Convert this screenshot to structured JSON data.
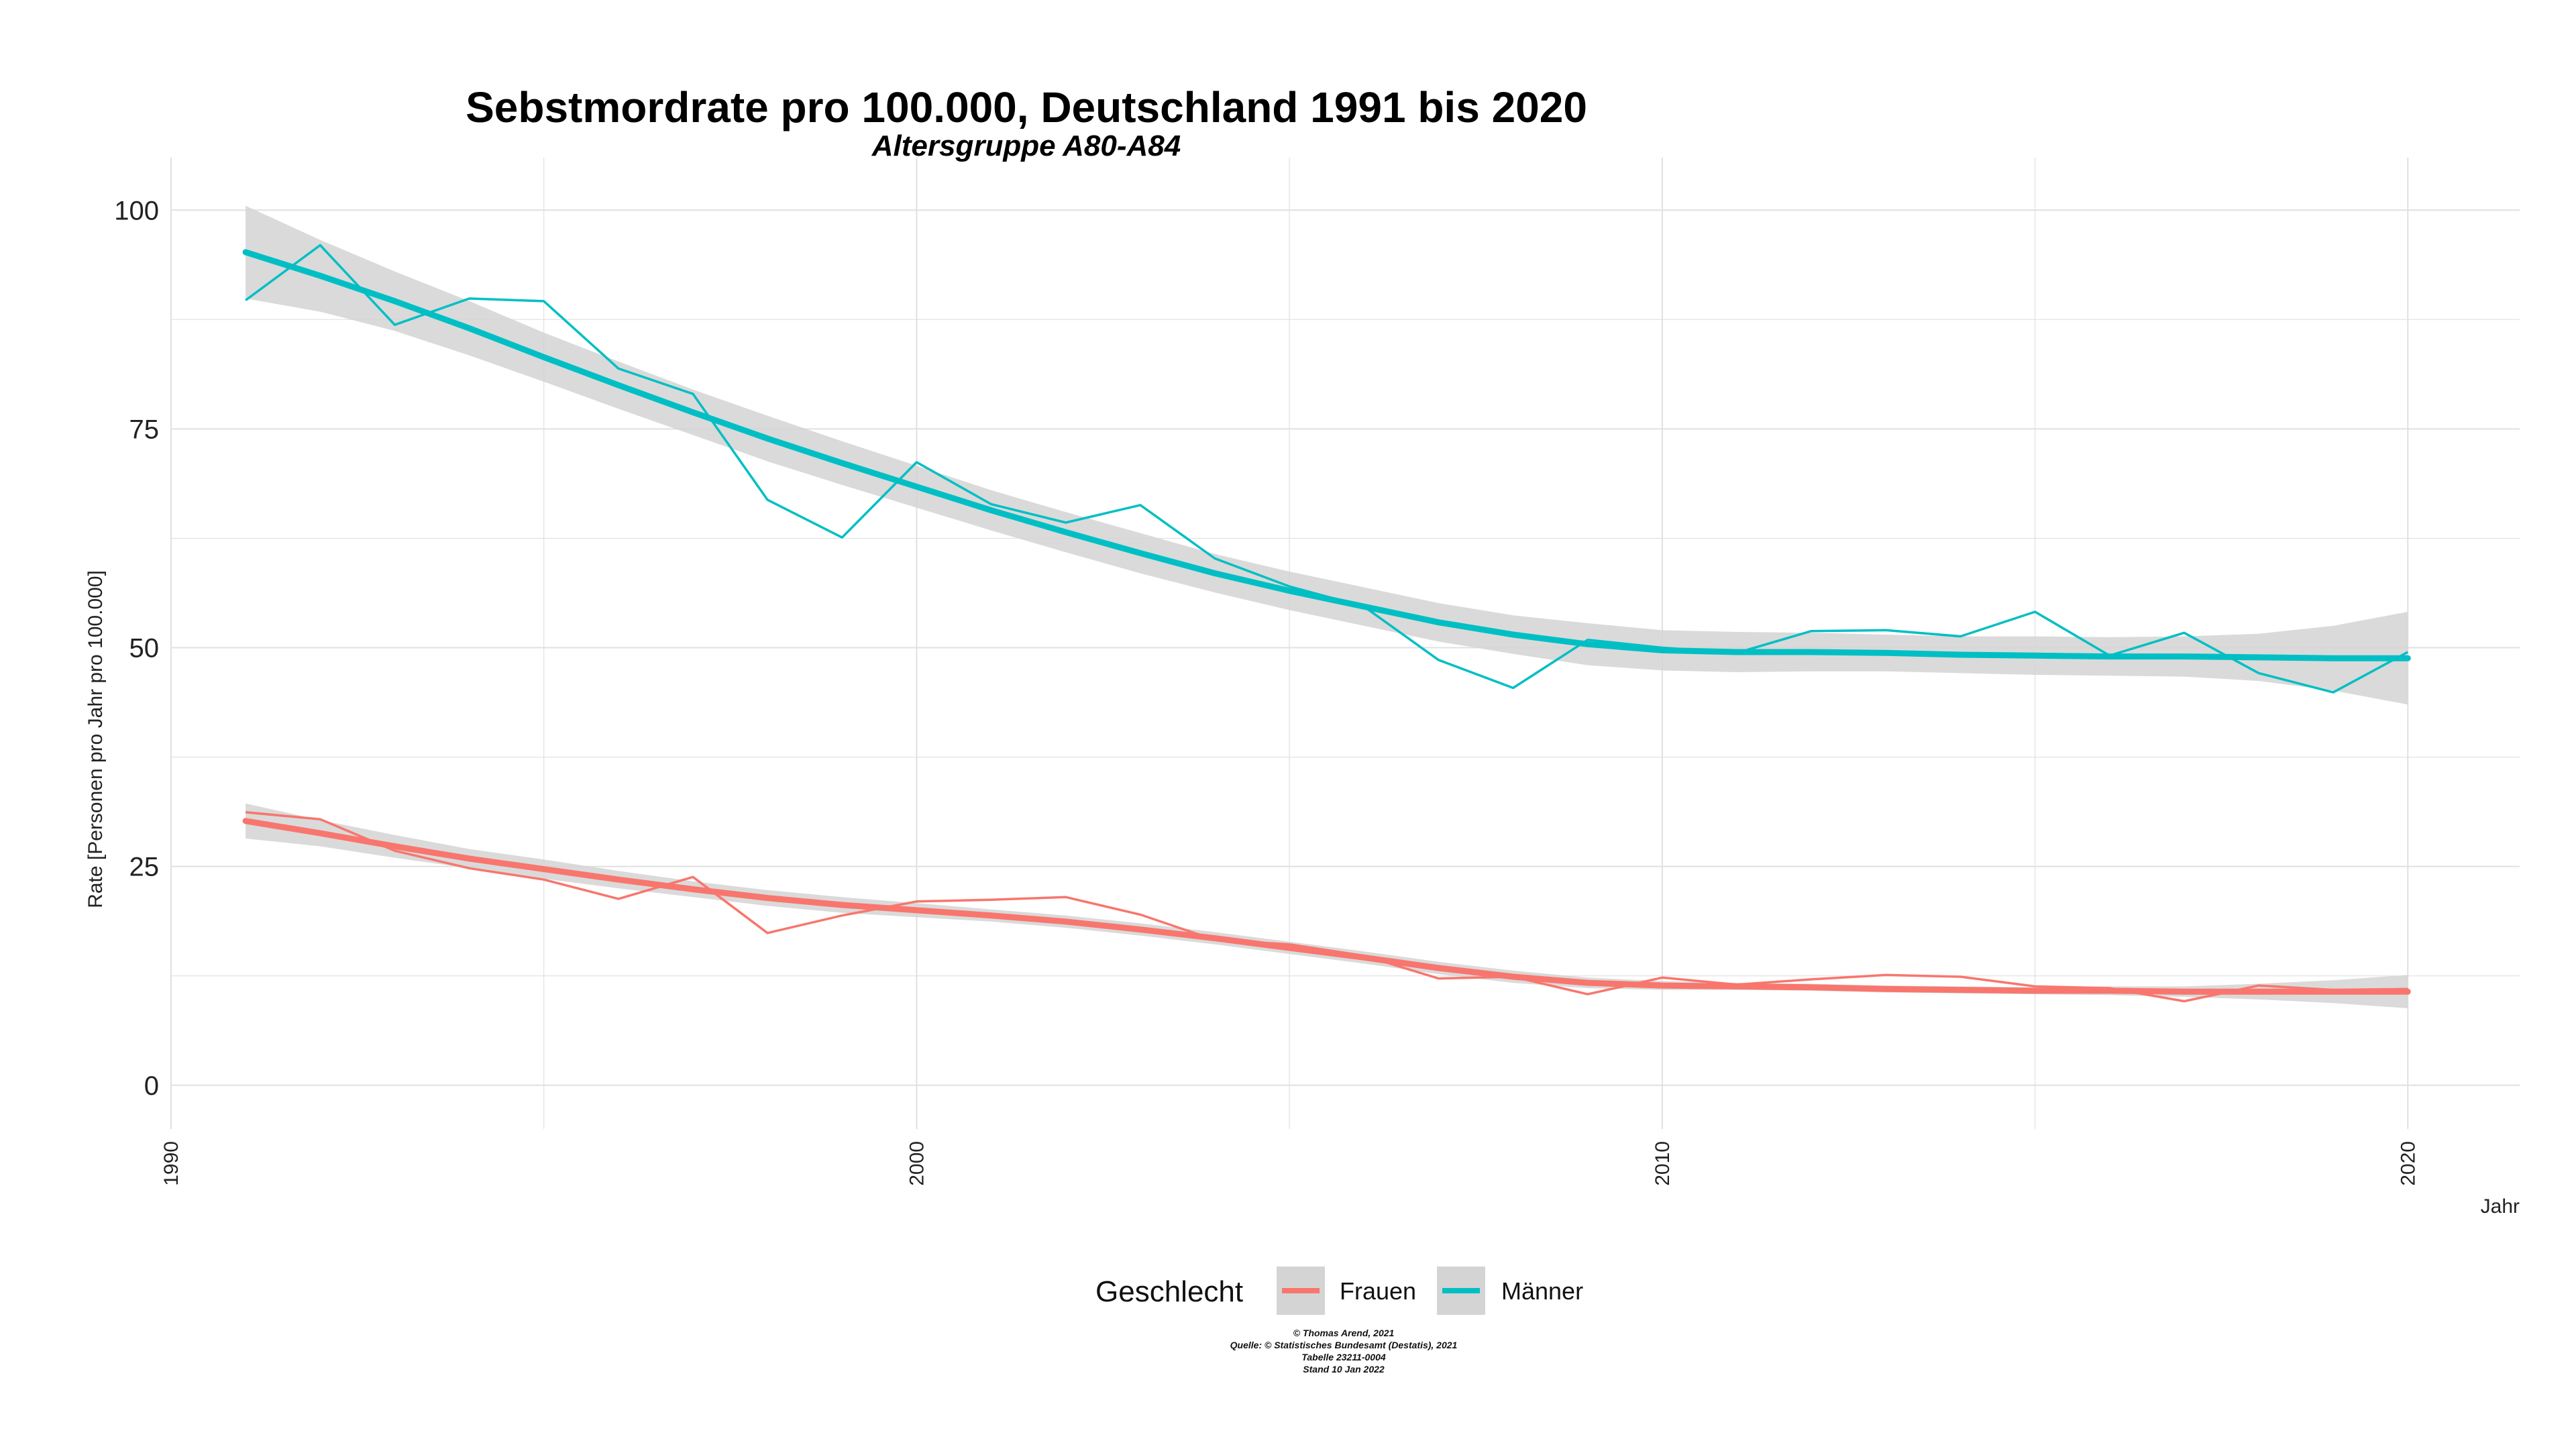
{
  "chart_data": {
    "type": "line",
    "title": "Sebstmordrate pro 100.000, Deutschland  1991 bis 2020",
    "subtitle": "Altersgruppe A80-A84",
    "xlabel": "Jahr",
    "ylabel": "Rate [Personen pro Jahr pro 100.000]",
    "xlim": [
      1990,
      2021.5
    ],
    "ylim": [
      -5,
      106
    ],
    "x_ticks": [
      1990,
      2000,
      2010,
      2020
    ],
    "y_ticks": [
      0,
      25,
      50,
      75,
      100
    ],
    "grid": true,
    "legend": {
      "title": "Geschlecht",
      "position": "bottom"
    },
    "x": [
      1991,
      1992,
      1993,
      1994,
      1995,
      1996,
      1997,
      1998,
      1999,
      2000,
      2001,
      2002,
      2003,
      2004,
      2005,
      2006,
      2007,
      2008,
      2009,
      2010,
      2011,
      2012,
      2013,
      2014,
      2015,
      2016,
      2017,
      2018,
      2019,
      2020
    ],
    "series": [
      {
        "name": "Frauen",
        "color": "#f8766d",
        "values": [
          31.2,
          30.4,
          26.8,
          24.8,
          23.5,
          21.3,
          23.8,
          17.4,
          19.4,
          21.0,
          21.2,
          21.5,
          19.5,
          16.6,
          16.1,
          14.8,
          12.2,
          12.4,
          10.4,
          12.3,
          11.5,
          12.1,
          12.6,
          12.4,
          11.3,
          11.1,
          9.6,
          11.4,
          10.9,
          11.0
        ],
        "trend": [
          30.2,
          28.8,
          27.3,
          25.9,
          24.7,
          23.5,
          22.4,
          21.4,
          20.6,
          20.0,
          19.4,
          18.7,
          17.8,
          16.8,
          15.7,
          14.6,
          13.4,
          12.4,
          11.7,
          11.4,
          11.3,
          11.2,
          11.0,
          10.9,
          10.8,
          10.8,
          10.7,
          10.7,
          10.7,
          10.7
        ],
        "ci_lower": [
          28.2,
          27.3,
          26.0,
          24.8,
          23.6,
          22.5,
          21.5,
          20.5,
          19.7,
          19.2,
          18.7,
          18.0,
          17.1,
          16.1,
          15.0,
          13.9,
          12.7,
          11.7,
          11.1,
          10.9,
          10.9,
          10.8,
          10.6,
          10.5,
          10.4,
          10.3,
          10.1,
          9.8,
          9.4,
          8.8
        ],
        "ci_upper": [
          32.2,
          30.3,
          28.6,
          27.0,
          25.8,
          24.5,
          23.3,
          22.3,
          21.5,
          20.8,
          20.1,
          19.4,
          18.5,
          17.5,
          16.4,
          15.3,
          14.1,
          13.1,
          12.3,
          11.9,
          11.7,
          11.6,
          11.4,
          11.3,
          11.2,
          11.3,
          11.3,
          11.6,
          12.0,
          12.6
        ]
      },
      {
        "name": "Männer",
        "color": "#00bfc4",
        "values": [
          89.7,
          96.0,
          86.9,
          89.9,
          89.6,
          81.9,
          79.0,
          66.9,
          62.6,
          71.2,
          66.4,
          64.3,
          66.3,
          60.2,
          57.0,
          54.7,
          48.6,
          45.4,
          50.9,
          50.0,
          49.4,
          51.9,
          52.0,
          51.3,
          54.1,
          49.1,
          51.7,
          47.1,
          44.9,
          49.5
        ],
        "trend": [
          95.2,
          92.5,
          89.6,
          86.5,
          83.2,
          80.0,
          76.9,
          73.9,
          71.1,
          68.4,
          65.7,
          63.2,
          60.8,
          58.5,
          56.5,
          54.7,
          52.9,
          51.5,
          50.4,
          49.7,
          49.5,
          49.5,
          49.4,
          49.2,
          49.1,
          49.0,
          49.0,
          48.9,
          48.8,
          48.8
        ],
        "ci_lower": [
          89.9,
          88.4,
          86.2,
          83.4,
          80.4,
          77.3,
          74.3,
          71.3,
          68.6,
          66.0,
          63.4,
          60.9,
          58.5,
          56.3,
          54.3,
          52.5,
          50.7,
          49.3,
          48.0,
          47.4,
          47.2,
          47.3,
          47.3,
          47.1,
          46.9,
          46.8,
          46.7,
          46.2,
          45.1,
          43.5
        ],
        "ci_upper": [
          100.5,
          96.6,
          93.0,
          89.6,
          86.0,
          82.7,
          79.5,
          76.5,
          73.6,
          70.8,
          68.0,
          65.5,
          63.1,
          60.7,
          58.7,
          56.9,
          55.1,
          53.7,
          52.8,
          52.0,
          51.8,
          51.7,
          51.5,
          51.3,
          51.3,
          51.2,
          51.3,
          51.6,
          52.5,
          54.1
        ]
      }
    ]
  },
  "caption": {
    "line1": "© Thomas Arend, 2021",
    "line2": "Quelle: © Statistisches Bundesamt (Destatis), 2021",
    "line3": "Tabelle 23211-0004",
    "line4": "Stand 10 Jan 2022"
  },
  "colors": {
    "ci_band": "#d4d4d4",
    "grid": "#e0e0e0"
  }
}
